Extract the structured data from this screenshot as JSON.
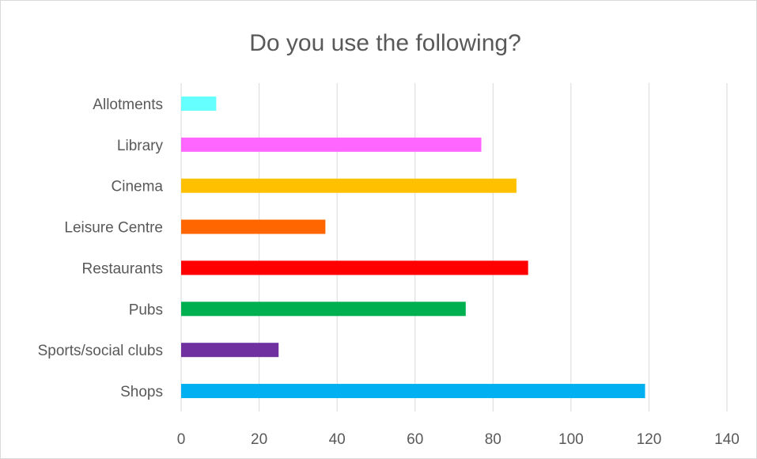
{
  "chart_data": {
    "type": "bar",
    "orientation": "horizontal",
    "title": "Do you use the following?",
    "categories": [
      "Allotments",
      "Library",
      "Cinema",
      "Leisure Centre",
      "Restaurants",
      "Pubs",
      "Sports/social clubs",
      "Shops"
    ],
    "values": [
      9,
      77,
      86,
      37,
      89,
      73,
      25,
      119
    ],
    "colors": [
      "#66ffff",
      "#ff66ff",
      "#ffc000",
      "#ff6600",
      "#ff0000",
      "#00b050",
      "#7030a0",
      "#00b0f0"
    ],
    "xlim": [
      0,
      140
    ],
    "xticks": [
      0,
      20,
      40,
      60,
      80,
      100,
      120,
      140
    ],
    "grid": true,
    "legend": "none"
  }
}
